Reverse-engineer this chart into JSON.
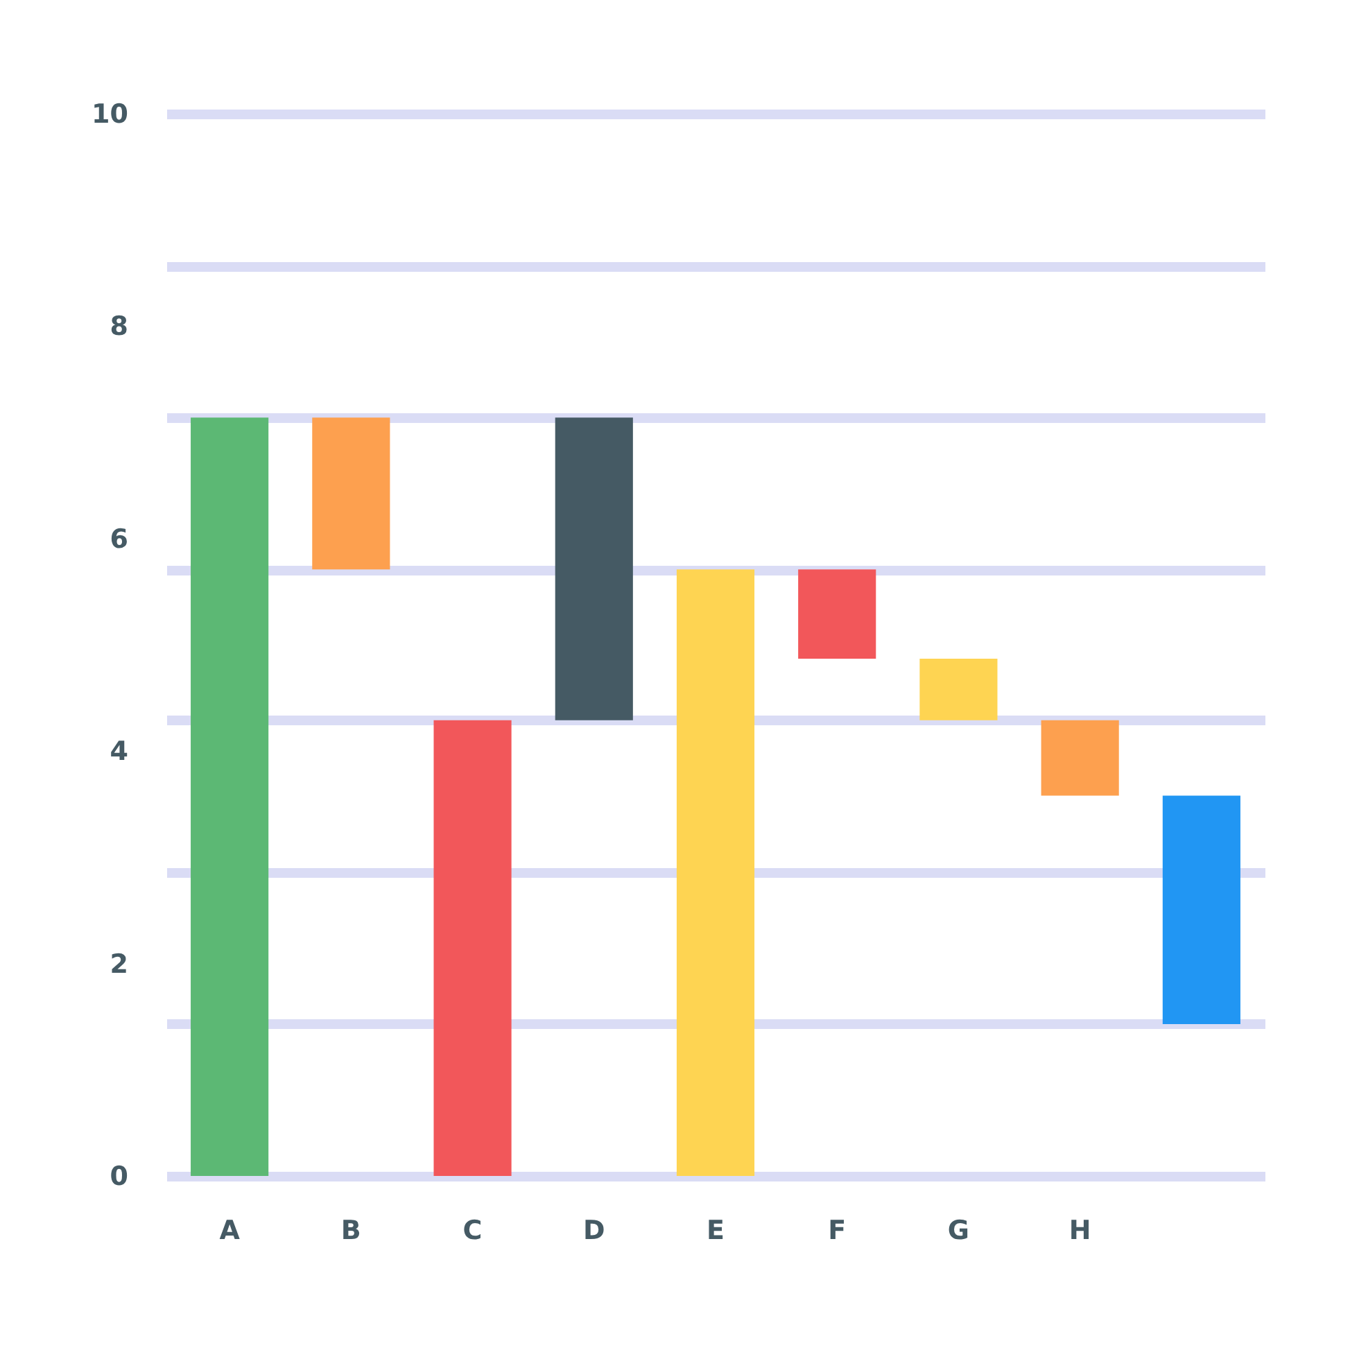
{
  "chart_data": {
    "type": "bar",
    "categories": [
      "A",
      "B",
      "C",
      "D",
      "E",
      "F",
      "G",
      "H",
      null
    ],
    "values": [
      7.14,
      1.43,
      4.29,
      2.85,
      5.71,
      0.84,
      0.58,
      0.71,
      2.15
    ],
    "base": [
      0,
      5.71,
      0,
      4.29,
      0,
      4.87,
      4.29,
      3.58,
      1.43
    ],
    "colors": [
      "#5cb874",
      "#fda04f",
      "#f2575a",
      "#455a64",
      "#fed452",
      "#f2575a",
      "#fed452",
      "#fda04f",
      "#2196f3"
    ],
    "ylim": [
      0,
      10
    ],
    "yticks": [
      0,
      {
        "value": 1.43,
        "label": null
      },
      2,
      {
        "value": 2.86,
        "label": null
      },
      4,
      {
        "value": 4.29,
        "label": null
      },
      {
        "value": 5.71,
        "label": null
      },
      6,
      {
        "value": 7.14,
        "label": null
      },
      8,
      {
        "value": 8.57,
        "label": null
      },
      10
    ],
    "grid": true
  }
}
